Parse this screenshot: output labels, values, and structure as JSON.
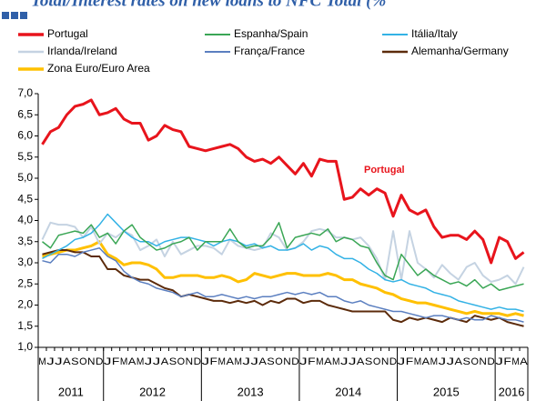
{
  "chart_data": {
    "type": "line",
    "title": "Total/Interest rates on new loans to NFC Total (%",
    "annotation": "Portugal",
    "categories": [
      "M",
      "J",
      "J",
      "A",
      "S",
      "O",
      "N",
      "D",
      "J",
      "F",
      "M",
      "A",
      "M",
      "J",
      "J",
      "A",
      "S",
      "O",
      "N",
      "D",
      "J",
      "F",
      "M",
      "A",
      "M",
      "J",
      "J",
      "A",
      "S",
      "O",
      "N",
      "D",
      "J",
      "F",
      "M",
      "A",
      "M",
      "J",
      "J",
      "A",
      "S",
      "O",
      "N",
      "D",
      "J",
      "F",
      "M",
      "A",
      "M",
      "J",
      "J",
      "A",
      "S",
      "O",
      "N",
      "D",
      "J",
      "F",
      "M",
      "A"
    ],
    "years": [
      "2011",
      "2012",
      "2013",
      "2014",
      "2015",
      "2016"
    ],
    "ylim": [
      1.0,
      7.0
    ],
    "yticks": [
      {
        "value": 1.0,
        "label": "1,0"
      },
      {
        "value": 1.5,
        "label": "1,5"
      },
      {
        "value": 2.0,
        "label": "2,0"
      },
      {
        "value": 2.5,
        "label": "2,5"
      },
      {
        "value": 3.0,
        "label": "3,0"
      },
      {
        "value": 3.5,
        "label": "3,5"
      },
      {
        "value": 4.0,
        "label": "4,0"
      },
      {
        "value": 4.5,
        "label": "4,5"
      },
      {
        "value": 5.0,
        "label": "5,0"
      },
      {
        "value": 5.5,
        "label": "5,5"
      },
      {
        "value": 6.0,
        "label": "6,0"
      },
      {
        "value": 6.5,
        "label": "6,5"
      },
      {
        "value": 7.0,
        "label": "7,0"
      }
    ],
    "grid": false,
    "series": [
      {
        "name": "Portugal",
        "color": "#e8141c",
        "width": 3,
        "values": [
          5.8,
          6.1,
          6.2,
          6.5,
          6.7,
          6.75,
          6.85,
          6.5,
          6.55,
          6.65,
          6.4,
          6.3,
          6.3,
          5.9,
          6.0,
          6.25,
          6.15,
          6.1,
          5.75,
          5.7,
          5.65,
          5.7,
          5.75,
          5.8,
          5.7,
          5.5,
          5.4,
          5.45,
          5.35,
          5.5,
          5.3,
          5.1,
          5.35,
          5.05,
          5.45,
          5.4,
          5.4,
          4.5,
          4.55,
          4.75,
          4.6,
          4.75,
          4.65,
          4.1,
          4.6,
          4.25,
          4.15,
          4.25,
          3.85,
          3.6,
          3.65,
          3.65,
          3.55,
          3.75,
          3.55,
          3.0,
          3.6,
          3.5,
          3.1,
          3.25
        ]
      },
      {
        "name": "Espanha/Spain",
        "color": "#3aa655",
        "width": 1.5,
        "values": [
          3.5,
          3.35,
          3.65,
          3.7,
          3.75,
          3.7,
          3.9,
          3.6,
          3.7,
          3.45,
          3.75,
          3.9,
          3.6,
          3.45,
          3.3,
          3.35,
          3.45,
          3.5,
          3.6,
          3.3,
          3.5,
          3.5,
          3.5,
          3.8,
          3.5,
          3.35,
          3.4,
          3.4,
          3.6,
          3.95,
          3.35,
          3.6,
          3.65,
          3.7,
          3.65,
          3.8,
          3.5,
          3.6,
          3.55,
          3.4,
          3.35,
          3.0,
          2.7,
          2.6,
          3.2,
          2.95,
          2.7,
          2.85,
          2.7,
          2.6,
          2.5,
          2.55,
          2.45,
          2.6,
          2.4,
          2.5,
          2.35,
          2.4,
          2.45,
          2.5
        ]
      },
      {
        "name": "Itália/Italy",
        "color": "#33b2e5",
        "width": 1.5,
        "values": [
          3.1,
          3.2,
          3.3,
          3.4,
          3.55,
          3.6,
          3.7,
          3.9,
          4.15,
          3.95,
          3.75,
          3.6,
          3.5,
          3.5,
          3.4,
          3.5,
          3.55,
          3.6,
          3.6,
          3.55,
          3.5,
          3.4,
          3.5,
          3.55,
          3.5,
          3.4,
          3.45,
          3.35,
          3.4,
          3.3,
          3.3,
          3.35,
          3.45,
          3.3,
          3.4,
          3.35,
          3.2,
          3.1,
          3.1,
          3.0,
          2.85,
          2.75,
          2.6,
          2.55,
          2.6,
          2.5,
          2.45,
          2.4,
          2.3,
          2.25,
          2.2,
          2.1,
          2.05,
          2.0,
          1.95,
          1.9,
          1.95,
          1.9,
          1.9,
          1.85
        ]
      },
      {
        "name": "Irlanda/Ireland",
        "color": "#c5d3e2",
        "width": 2,
        "values": [
          3.55,
          3.95,
          3.9,
          3.9,
          3.85,
          3.6,
          3.85,
          3.45,
          3.7,
          3.6,
          3.75,
          3.65,
          3.3,
          3.4,
          3.55,
          3.15,
          3.5,
          3.2,
          3.3,
          3.4,
          3.4,
          3.35,
          3.2,
          3.55,
          3.4,
          3.35,
          3.3,
          3.35,
          3.7,
          3.6,
          3.3,
          3.35,
          3.5,
          3.75,
          3.8,
          3.75,
          3.6,
          3.6,
          3.55,
          3.6,
          3.4,
          3.1,
          2.6,
          3.75,
          2.6,
          3.75,
          3.0,
          2.85,
          2.65,
          2.95,
          2.75,
          2.6,
          2.9,
          3.0,
          2.7,
          2.55,
          2.6,
          2.7,
          2.5,
          2.9
        ]
      },
      {
        "name": "França/France",
        "color": "#5b7fc0",
        "width": 1.5,
        "values": [
          3.05,
          3.0,
          3.2,
          3.2,
          3.15,
          3.25,
          3.3,
          3.35,
          3.15,
          3.05,
          2.8,
          2.65,
          2.55,
          2.5,
          2.4,
          2.35,
          2.3,
          2.2,
          2.25,
          2.3,
          2.2,
          2.2,
          2.25,
          2.2,
          2.15,
          2.2,
          2.15,
          2.2,
          2.2,
          2.25,
          2.3,
          2.25,
          2.3,
          2.25,
          2.3,
          2.2,
          2.2,
          2.1,
          2.05,
          2.1,
          2.0,
          1.95,
          1.9,
          1.85,
          1.85,
          1.8,
          1.75,
          1.7,
          1.75,
          1.75,
          1.7,
          1.65,
          1.7,
          1.65,
          1.65,
          1.75,
          1.7,
          1.65,
          1.65,
          1.6
        ]
      },
      {
        "name": "Alemanha/Germany",
        "color": "#5c2b0b",
        "width": 2,
        "values": [
          3.2,
          3.25,
          3.3,
          3.3,
          3.25,
          3.25,
          3.15,
          3.15,
          2.85,
          2.85,
          2.7,
          2.65,
          2.6,
          2.6,
          2.5,
          2.4,
          2.35,
          2.2,
          2.25,
          2.2,
          2.15,
          2.1,
          2.1,
          2.05,
          2.1,
          2.05,
          2.1,
          2.0,
          2.1,
          2.05,
          2.15,
          2.15,
          2.05,
          2.1,
          2.1,
          2.0,
          1.95,
          1.9,
          1.85,
          1.85,
          1.85,
          1.85,
          1.85,
          1.65,
          1.6,
          1.7,
          1.65,
          1.7,
          1.65,
          1.6,
          1.7,
          1.65,
          1.6,
          1.75,
          1.7,
          1.65,
          1.7,
          1.6,
          1.55,
          1.5
        ]
      },
      {
        "name": "Zona Euro/Euro Area",
        "color": "#ffc000",
        "width": 3,
        "values": [
          3.15,
          3.2,
          3.25,
          3.3,
          3.3,
          3.35,
          3.4,
          3.5,
          3.2,
          3.1,
          2.95,
          3.0,
          3.0,
          2.95,
          2.85,
          2.65,
          2.65,
          2.7,
          2.7,
          2.7,
          2.65,
          2.65,
          2.7,
          2.65,
          2.55,
          2.6,
          2.75,
          2.7,
          2.65,
          2.7,
          2.75,
          2.75,
          2.7,
          2.7,
          2.7,
          2.75,
          2.7,
          2.6,
          2.6,
          2.5,
          2.45,
          2.4,
          2.3,
          2.25,
          2.15,
          2.1,
          2.05,
          2.05,
          2.0,
          1.95,
          1.9,
          1.85,
          1.8,
          1.85,
          1.8,
          1.8,
          1.8,
          1.75,
          1.8,
          1.75
        ]
      }
    ]
  }
}
